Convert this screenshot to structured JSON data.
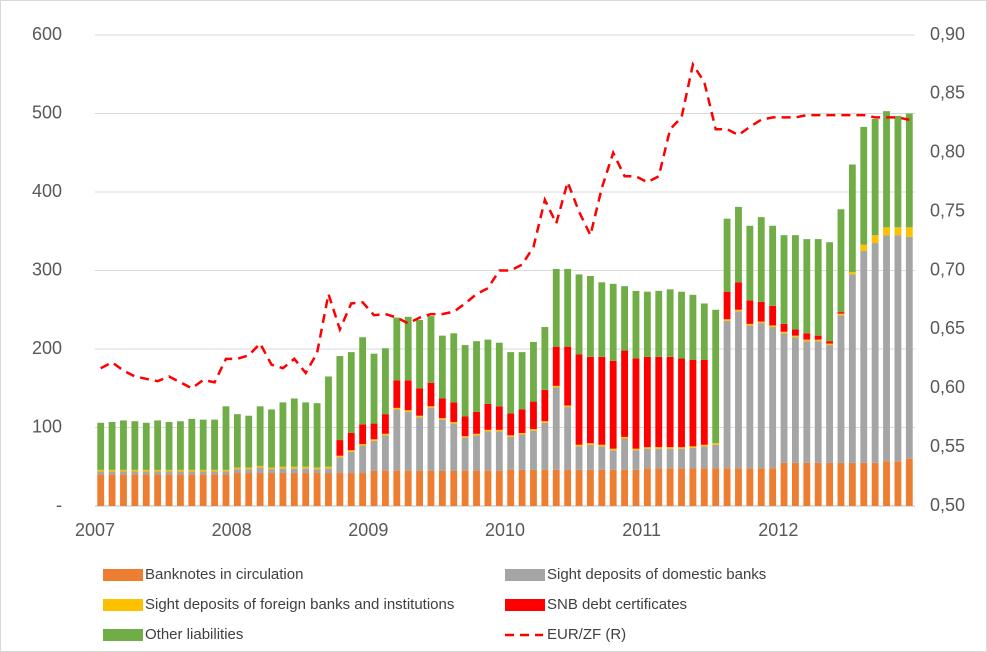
{
  "chart_data": {
    "type": "bar",
    "categories": [
      "2007",
      null,
      null,
      null,
      null,
      null,
      null,
      null,
      null,
      null,
      null,
      null,
      "2008",
      null,
      null,
      null,
      null,
      null,
      null,
      null,
      null,
      null,
      null,
      null,
      "2009",
      null,
      null,
      null,
      null,
      null,
      null,
      null,
      null,
      null,
      null,
      null,
      "2010",
      null,
      null,
      null,
      null,
      null,
      null,
      null,
      null,
      null,
      null,
      null,
      "2011",
      null,
      null,
      null,
      null,
      null,
      null,
      null,
      null,
      null,
      null,
      null,
      "2012",
      null,
      null,
      null,
      null,
      null,
      null,
      null,
      null,
      null,
      null,
      null
    ],
    "series": [
      {
        "name": "Banknotes in circulation",
        "color": "#ed7d31",
        "values": [
          40,
          40,
          40,
          40,
          40,
          40,
          40,
          40,
          40,
          40,
          40,
          40,
          42,
          42,
          42,
          42,
          42,
          42,
          42,
          42,
          42,
          42,
          42,
          42,
          45,
          45,
          45,
          45,
          45,
          45,
          45,
          45,
          45,
          45,
          45,
          45,
          46,
          46,
          46,
          46,
          46,
          46,
          46,
          46,
          46,
          46,
          46,
          46,
          48,
          48,
          48,
          48,
          48,
          48,
          48,
          48,
          48,
          48,
          48,
          48,
          55,
          55,
          55,
          55,
          55,
          55,
          55,
          55,
          55,
          57,
          57,
          60
        ]
      },
      {
        "name": "Sight deposits of domestic banks",
        "color": "#a5a5a5",
        "values": [
          4,
          4,
          4,
          4,
          4,
          4,
          4,
          4,
          4,
          4,
          4,
          4,
          5,
          5,
          7,
          5,
          6,
          6,
          6,
          5,
          6,
          20,
          27,
          35,
          38,
          45,
          78,
          75,
          68,
          80,
          65,
          60,
          42,
          45,
          50,
          50,
          42,
          45,
          50,
          60,
          105,
          80,
          30,
          32,
          30,
          25,
          40,
          25,
          25,
          25,
          25,
          25,
          26,
          28,
          30,
          188,
          200,
          182,
          185,
          180,
          165,
          160,
          155,
          155,
          150,
          188,
          240,
          270,
          280,
          288,
          288,
          283
        ]
      },
      {
        "name": "Sight deposits of foreign banks and institutions",
        "color": "#ffc000",
        "values": [
          2,
          2,
          2,
          2,
          2,
          2,
          2,
          2,
          2,
          2,
          2,
          2,
          2,
          2,
          2,
          2,
          2,
          2,
          2,
          2,
          2,
          2,
          2,
          2,
          2,
          2,
          2,
          2,
          2,
          2,
          2,
          2,
          2,
          2,
          2,
          2,
          2,
          2,
          2,
          2,
          2,
          2,
          2,
          2,
          2,
          2,
          2,
          2,
          2,
          2,
          2,
          2,
          2,
          2,
          2,
          2,
          2,
          2,
          2,
          2,
          2,
          2,
          2,
          2,
          2,
          2,
          3,
          8,
          10,
          10,
          10,
          12
        ]
      },
      {
        "name": "SNB debt certificates",
        "color": "#ff0000",
        "values": [
          0,
          0,
          0,
          0,
          0,
          0,
          0,
          0,
          0,
          0,
          0,
          0,
          0,
          0,
          0,
          0,
          0,
          0,
          0,
          0,
          0,
          20,
          22,
          25,
          20,
          25,
          35,
          38,
          35,
          30,
          25,
          25,
          25,
          28,
          33,
          30,
          28,
          30,
          35,
          40,
          50,
          75,
          115,
          110,
          112,
          112,
          110,
          115,
          115,
          115,
          115,
          113,
          110,
          108,
          0,
          35,
          35,
          30,
          25,
          25,
          10,
          8,
          8,
          5,
          3,
          2,
          0,
          0,
          0,
          0,
          0,
          0
        ]
      },
      {
        "name": "Other liabilities",
        "color": "#70ad47",
        "values": [
          60,
          61,
          63,
          62,
          60,
          63,
          61,
          62,
          65,
          64,
          64,
          81,
          68,
          66,
          76,
          74,
          82,
          87,
          82,
          82,
          115,
          107,
          103,
          111,
          89,
          84,
          80,
          81,
          87,
          85,
          80,
          88,
          91,
          90,
          82,
          81,
          78,
          73,
          76,
          80,
          99,
          99,
          102,
          103,
          95,
          98,
          82,
          86,
          83,
          84,
          86,
          85,
          83,
          72,
          170,
          93,
          96,
          95,
          108,
          102,
          113,
          120,
          120,
          123,
          126,
          131,
          137,
          150,
          148,
          148,
          142,
          145
        ]
      },
      {
        "name": "EUR/ZF (R)",
        "color": "#ff0000",
        "axis": "y2",
        "dashed": true,
        "values": [
          0.617,
          0.622,
          0.615,
          0.61,
          0.608,
          0.606,
          0.61,
          0.605,
          0.6,
          0.607,
          0.605,
          0.625,
          0.625,
          0.628,
          0.638,
          0.62,
          0.617,
          0.625,
          0.613,
          0.63,
          0.68,
          0.65,
          0.672,
          0.673,
          0.662,
          0.663,
          0.66,
          0.655,
          0.66,
          0.663,
          0.663,
          0.665,
          0.672,
          0.68,
          0.685,
          0.7,
          0.7,
          0.705,
          0.72,
          0.76,
          0.74,
          0.775,
          0.75,
          0.73,
          0.77,
          0.8,
          0.78,
          0.78,
          0.775,
          0.78,
          0.82,
          0.83,
          0.875,
          0.86,
          0.82,
          0.82,
          0.815,
          0.822,
          0.828,
          0.83,
          0.83,
          0.83,
          0.832,
          0.832,
          0.832,
          0.832,
          0.832,
          0.832,
          0.83,
          0.83,
          0.83,
          0.828
        ]
      }
    ],
    "ylim": [
      0,
      600
    ],
    "yticks": [
      {
        "value": 0,
        "label": "-"
      },
      100,
      200,
      300,
      400,
      500,
      600
    ],
    "y2lim": [
      0.5,
      0.9
    ],
    "y2ticks": [
      {
        "value": 0.5,
        "label": "0,50"
      },
      {
        "value": 0.55,
        "label": "0,55"
      },
      {
        "value": 0.6,
        "label": "0,60"
      },
      {
        "value": 0.65,
        "label": "0,65"
      },
      {
        "value": 0.7,
        "label": "0,70"
      },
      {
        "value": 0.75,
        "label": "0,75"
      },
      {
        "value": 0.8,
        "label": "0,80"
      },
      {
        "value": 0.85,
        "label": "0,85"
      },
      {
        "value": 0.9,
        "label": "0,90"
      }
    ],
    "grid": true,
    "legend": "bottom"
  }
}
